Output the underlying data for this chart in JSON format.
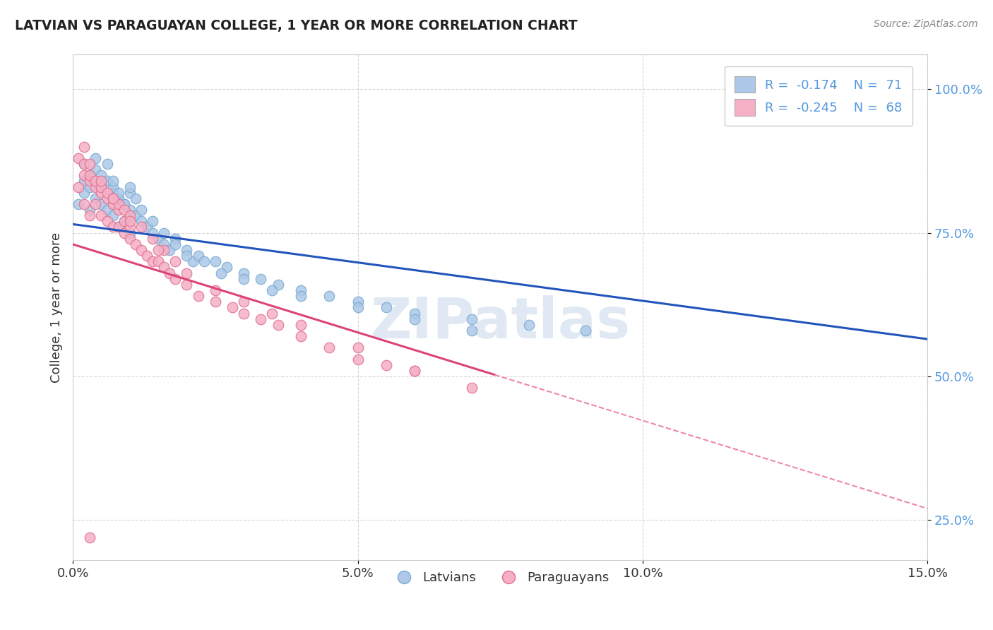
{
  "title": "LATVIAN VS PARAGUAYAN COLLEGE, 1 YEAR OR MORE CORRELATION CHART",
  "source_text": "Source: ZipAtlas.com",
  "ylabel": "College, 1 year or more",
  "xlim": [
    0.0,
    0.15
  ],
  "ylim": [
    0.18,
    1.06
  ],
  "xticks": [
    0.0,
    0.05,
    0.1,
    0.15
  ],
  "xticklabels": [
    "0.0%",
    "5.0%",
    "10.0%",
    "15.0%"
  ],
  "yticks": [
    0.25,
    0.5,
    0.75,
    1.0
  ],
  "yticklabels": [
    "25.0%",
    "50.0%",
    "75.0%",
    "100.0%"
  ],
  "latvian_color": "#adc8e8",
  "paraguayan_color": "#f5b0c5",
  "latvian_edge": "#7aaad0",
  "paraguayan_edge": "#e07090",
  "trend_latvian_color": "#2255bb",
  "trend_paraguayan_color": "#dd4477",
  "dashed_line_color": "#ee88aa",
  "R_latvian": -0.174,
  "N_latvian": 71,
  "R_paraguayan": -0.245,
  "N_paraguayan": 68,
  "legend_latvian_label": "Latvians",
  "legend_paraguayan_label": "Paraguayans",
  "watermark": "ZIPatlas",
  "tick_color": "#5599dd",
  "latvian_x": [
    0.001,
    0.002,
    0.002,
    0.003,
    0.003,
    0.004,
    0.004,
    0.005,
    0.005,
    0.006,
    0.006,
    0.007,
    0.007,
    0.007,
    0.008,
    0.008,
    0.009,
    0.009,
    0.01,
    0.01,
    0.01,
    0.011,
    0.012,
    0.013,
    0.014,
    0.015,
    0.016,
    0.017,
    0.018,
    0.02,
    0.021,
    0.022,
    0.025,
    0.027,
    0.03,
    0.033,
    0.036,
    0.04,
    0.045,
    0.05,
    0.055,
    0.06,
    0.07,
    0.08,
    0.09,
    0.002,
    0.003,
    0.004,
    0.005,
    0.006,
    0.007,
    0.008,
    0.009,
    0.01,
    0.011,
    0.012,
    0.014,
    0.016,
    0.018,
    0.02,
    0.023,
    0.026,
    0.03,
    0.035,
    0.04,
    0.05,
    0.06,
    0.07,
    0.13,
    0.135,
    0.14
  ],
  "latvian_y": [
    0.8,
    0.82,
    0.84,
    0.79,
    0.83,
    0.81,
    0.86,
    0.8,
    0.85,
    0.79,
    0.84,
    0.82,
    0.78,
    0.83,
    0.81,
    0.76,
    0.8,
    0.77,
    0.79,
    0.75,
    0.82,
    0.78,
    0.77,
    0.76,
    0.75,
    0.74,
    0.73,
    0.72,
    0.74,
    0.72,
    0.7,
    0.71,
    0.7,
    0.69,
    0.68,
    0.67,
    0.66,
    0.65,
    0.64,
    0.63,
    0.62,
    0.61,
    0.6,
    0.59,
    0.58,
    0.87,
    0.85,
    0.88,
    0.83,
    0.87,
    0.84,
    0.82,
    0.8,
    0.83,
    0.81,
    0.79,
    0.77,
    0.75,
    0.73,
    0.71,
    0.7,
    0.68,
    0.67,
    0.65,
    0.64,
    0.62,
    0.6,
    0.58,
    0.98,
    0.96,
    1.0
  ],
  "paraguayan_x": [
    0.001,
    0.001,
    0.002,
    0.002,
    0.003,
    0.003,
    0.004,
    0.004,
    0.005,
    0.005,
    0.006,
    0.006,
    0.007,
    0.007,
    0.008,
    0.008,
    0.009,
    0.009,
    0.01,
    0.01,
    0.011,
    0.012,
    0.013,
    0.014,
    0.015,
    0.016,
    0.017,
    0.018,
    0.02,
    0.022,
    0.025,
    0.028,
    0.03,
    0.033,
    0.036,
    0.04,
    0.045,
    0.05,
    0.055,
    0.06,
    0.002,
    0.003,
    0.004,
    0.005,
    0.006,
    0.007,
    0.008,
    0.009,
    0.01,
    0.012,
    0.014,
    0.016,
    0.018,
    0.02,
    0.025,
    0.03,
    0.035,
    0.04,
    0.05,
    0.06,
    0.07,
    0.002,
    0.003,
    0.005,
    0.007,
    0.01,
    0.015,
    0.003
  ],
  "paraguayan_y": [
    0.83,
    0.88,
    0.8,
    0.85,
    0.78,
    0.84,
    0.8,
    0.83,
    0.78,
    0.82,
    0.77,
    0.81,
    0.76,
    0.8,
    0.76,
    0.79,
    0.75,
    0.77,
    0.74,
    0.76,
    0.73,
    0.72,
    0.71,
    0.7,
    0.7,
    0.69,
    0.68,
    0.67,
    0.66,
    0.64,
    0.63,
    0.62,
    0.61,
    0.6,
    0.59,
    0.57,
    0.55,
    0.53,
    0.52,
    0.51,
    0.87,
    0.85,
    0.84,
    0.83,
    0.82,
    0.81,
    0.8,
    0.79,
    0.78,
    0.76,
    0.74,
    0.72,
    0.7,
    0.68,
    0.65,
    0.63,
    0.61,
    0.59,
    0.55,
    0.51,
    0.48,
    0.9,
    0.87,
    0.84,
    0.81,
    0.77,
    0.72,
    0.22
  ]
}
